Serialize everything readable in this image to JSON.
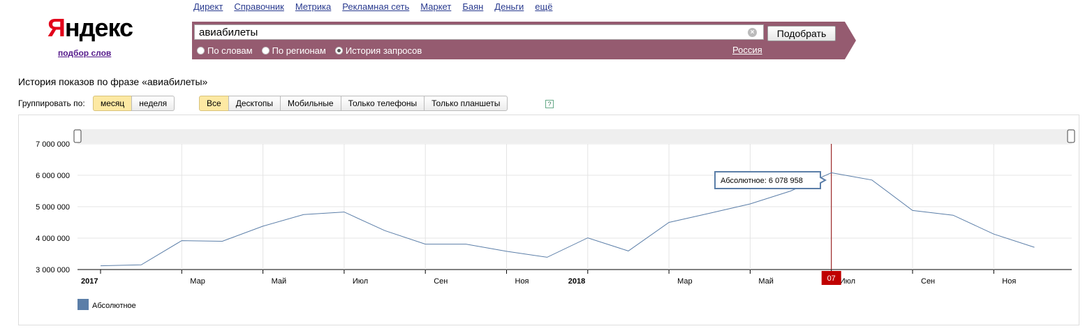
{
  "logo": {
    "first": "Я",
    "rest": "ндекс",
    "sub": "подбор слов"
  },
  "topnav": [
    "Директ",
    "Справочник",
    "Метрика",
    "Рекламная сеть",
    "Маркет",
    "Баян",
    "Деньги",
    "ещё"
  ],
  "search": {
    "value": "авиабилеты",
    "button": "Подобрать",
    "region": "Россия"
  },
  "modes": [
    {
      "label": "По словам",
      "selected": false
    },
    {
      "label": "По регионам",
      "selected": false
    },
    {
      "label": "История запросов",
      "selected": true
    }
  ],
  "page_title": "История показов по фразе «авиабилеты»",
  "group": {
    "label": "Группировать по:",
    "options": [
      {
        "label": "месяц",
        "active": true
      },
      {
        "label": "неделя",
        "active": false
      }
    ]
  },
  "devices": [
    {
      "label": "Все",
      "active": true
    },
    {
      "label": "Десктопы",
      "active": false
    },
    {
      "label": "Мобильные",
      "active": false
    },
    {
      "label": "Только телефоны",
      "active": false
    },
    {
      "label": "Только планшеты",
      "active": false
    }
  ],
  "help": "?",
  "chart_data": {
    "type": "line",
    "yticks": [
      "7 000 000",
      "6 000 000",
      "5 000 000",
      "4 000 000",
      "3 000 000"
    ],
    "ylim": [
      3000000,
      7000000
    ],
    "xticks": [
      {
        "label": "2017",
        "bold": true,
        "month": 0
      },
      {
        "label": "Мар",
        "month": 2
      },
      {
        "label": "Май",
        "month": 4
      },
      {
        "label": "Июл",
        "month": 6
      },
      {
        "label": "Сен",
        "month": 8
      },
      {
        "label": "Ноя",
        "month": 10
      },
      {
        "label": "2018",
        "bold": true,
        "month": 12
      },
      {
        "label": "Мар",
        "month": 14
      },
      {
        "label": "Май",
        "month": 16
      },
      {
        "label": "Июл",
        "month": 18
      },
      {
        "label": "Сен",
        "month": 20
      },
      {
        "label": "Ноя",
        "month": 22
      }
    ],
    "series": [
      {
        "name": "Абсолютное",
        "color": "#5b7ea8",
        "values": [
          3120000,
          3150000,
          3920000,
          3900000,
          4380000,
          4750000,
          4830000,
          4240000,
          3810000,
          3810000,
          3580000,
          3390000,
          4010000,
          3590000,
          4500000,
          4790000,
          5090000,
          5500000,
          6078958,
          5850000,
          4880000,
          4730000,
          4130000,
          3710000
        ]
      }
    ],
    "highlight": {
      "index": 18,
      "label": "07"
    },
    "tooltip": "Абсолютное: 6 078 958",
    "legend": "Абсолютное",
    "grid": true
  }
}
